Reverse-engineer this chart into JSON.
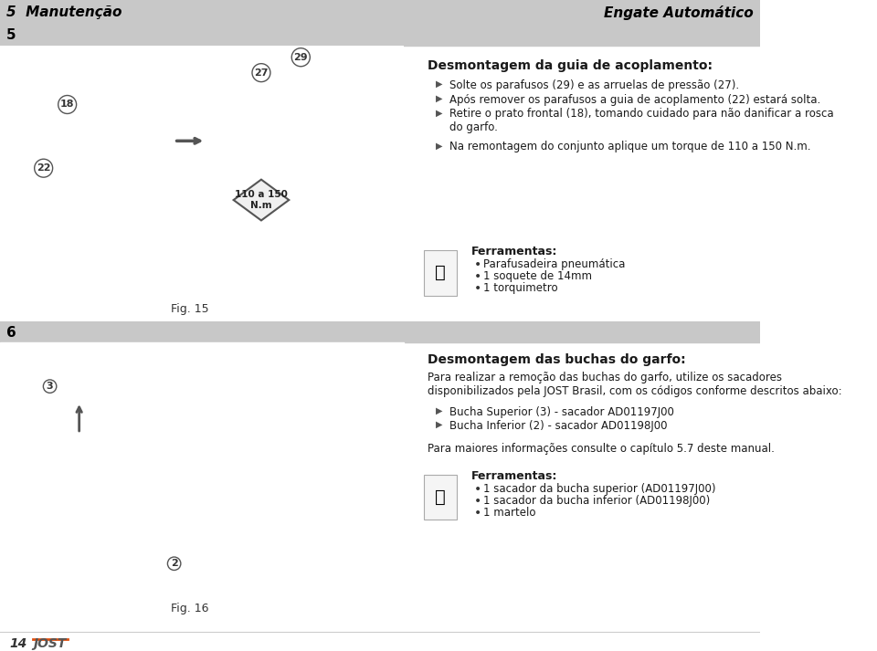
{
  "bg_color": "#ffffff",
  "header_bg": "#c8c8c8",
  "header_text_color": "#000000",
  "header_left": "5  Manutenção",
  "header_right": "Engate Automático",
  "section_bar_color": "#c8c8c8",
  "section5_num": "5",
  "section6_num": "6",
  "footer_num": "14",
  "footer_brand": "JOST",
  "section5_title": "Desmontagem da guia de acoplamento:",
  "section5_bullets": [
    "Solte os parafusos (29) e as arruelas de pressão (27).",
    "Após remover os parafusos a guia de acoplamento (22) estará solta.",
    "Retire o prato frontal (18), tomando cuidado para não danificar a rosca\ndo garfo."
  ],
  "section5_torque_note": "Na remontagem do conjunto aplique um torque de 110 a 150 N.m.",
  "section5_fig": "Fig. 15",
  "section5_tools_title": "Ferramentas:",
  "section5_tools": [
    "Parafusadeira pneumática",
    "1 soquete de 14mm",
    "1 torquimetro"
  ],
  "torque_label": "110 a 150\nN.m",
  "section6_title": "Desmontagem das buchas do garfo:",
  "section6_body": "Para realizar a remoção das buchas do garfo, utilize os sacadores\ndisponibilizados pela JOST Brasil, com os códigos conforme descritos abaixo:",
  "section6_bullets": [
    "Bucha Superior (3) - sacador AD01197J00",
    "Bucha Inferior (2) - sacador AD01198J00"
  ],
  "section6_note": "Para maiores informações consulte o capítulo 5.7 deste manual.",
  "section6_fig": "Fig. 16",
  "section6_tools_title": "Ferramentas:",
  "section6_tools": [
    "1 sacador da bucha superior (AD01197J00)",
    "1 sacador da bucha inferior (AD01198J00)",
    "1 martelo"
  ],
  "divider_color": "#c8c8c8",
  "text_color": "#1a1a1a",
  "label_color": "#333333"
}
